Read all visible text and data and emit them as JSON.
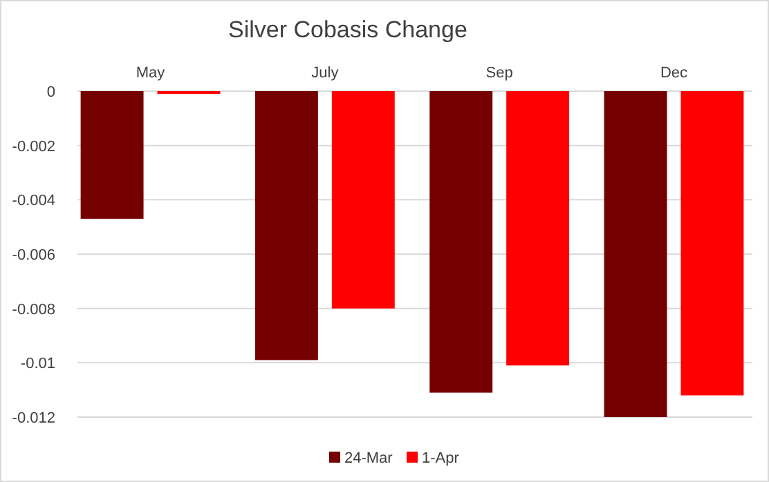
{
  "chart_data": {
    "type": "bar",
    "title": "Silver Cobasis Change",
    "categories": [
      "May",
      "July",
      "Sep",
      "Dec"
    ],
    "series": [
      {
        "name": "24-Mar",
        "color": "#750000",
        "values": [
          -0.0047,
          -0.0099,
          -0.0111,
          -0.012
        ]
      },
      {
        "name": "1-Apr",
        "color": "#ff0000",
        "values": [
          -0.0001,
          -0.008,
          -0.0101,
          -0.0112
        ]
      }
    ],
    "ylim": [
      -0.012,
      0
    ],
    "yticks": [
      0,
      -0.002,
      -0.004,
      -0.006,
      -0.008,
      -0.01,
      -0.012
    ],
    "grid": "y",
    "legend": "bottom"
  }
}
